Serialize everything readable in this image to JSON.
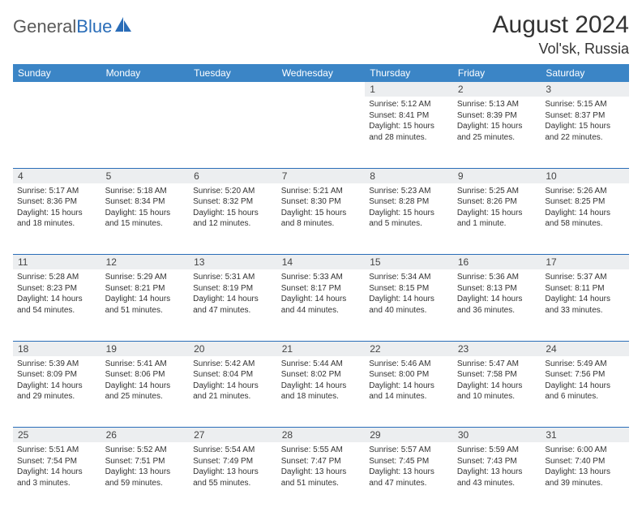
{
  "logo": {
    "text_a": "General",
    "text_b": "Blue"
  },
  "title": "August 2024",
  "location": "Vol'sk, Russia",
  "header_color": "#3b85c6",
  "border_color": "#2a6db8",
  "daynum_bg": "#eceef0",
  "text_color": "#333333",
  "font_family": "Arial",
  "days": [
    "Sunday",
    "Monday",
    "Tuesday",
    "Wednesday",
    "Thursday",
    "Friday",
    "Saturday"
  ],
  "weeks": [
    [
      null,
      null,
      null,
      null,
      {
        "n": "1",
        "sr": "5:12 AM",
        "ss": "8:41 PM",
        "dl": "15 hours and 28 minutes."
      },
      {
        "n": "2",
        "sr": "5:13 AM",
        "ss": "8:39 PM",
        "dl": "15 hours and 25 minutes."
      },
      {
        "n": "3",
        "sr": "5:15 AM",
        "ss": "8:37 PM",
        "dl": "15 hours and 22 minutes."
      }
    ],
    [
      {
        "n": "4",
        "sr": "5:17 AM",
        "ss": "8:36 PM",
        "dl": "15 hours and 18 minutes."
      },
      {
        "n": "5",
        "sr": "5:18 AM",
        "ss": "8:34 PM",
        "dl": "15 hours and 15 minutes."
      },
      {
        "n": "6",
        "sr": "5:20 AM",
        "ss": "8:32 PM",
        "dl": "15 hours and 12 minutes."
      },
      {
        "n": "7",
        "sr": "5:21 AM",
        "ss": "8:30 PM",
        "dl": "15 hours and 8 minutes."
      },
      {
        "n": "8",
        "sr": "5:23 AM",
        "ss": "8:28 PM",
        "dl": "15 hours and 5 minutes."
      },
      {
        "n": "9",
        "sr": "5:25 AM",
        "ss": "8:26 PM",
        "dl": "15 hours and 1 minute."
      },
      {
        "n": "10",
        "sr": "5:26 AM",
        "ss": "8:25 PM",
        "dl": "14 hours and 58 minutes."
      }
    ],
    [
      {
        "n": "11",
        "sr": "5:28 AM",
        "ss": "8:23 PM",
        "dl": "14 hours and 54 minutes."
      },
      {
        "n": "12",
        "sr": "5:29 AM",
        "ss": "8:21 PM",
        "dl": "14 hours and 51 minutes."
      },
      {
        "n": "13",
        "sr": "5:31 AM",
        "ss": "8:19 PM",
        "dl": "14 hours and 47 minutes."
      },
      {
        "n": "14",
        "sr": "5:33 AM",
        "ss": "8:17 PM",
        "dl": "14 hours and 44 minutes."
      },
      {
        "n": "15",
        "sr": "5:34 AM",
        "ss": "8:15 PM",
        "dl": "14 hours and 40 minutes."
      },
      {
        "n": "16",
        "sr": "5:36 AM",
        "ss": "8:13 PM",
        "dl": "14 hours and 36 minutes."
      },
      {
        "n": "17",
        "sr": "5:37 AM",
        "ss": "8:11 PM",
        "dl": "14 hours and 33 minutes."
      }
    ],
    [
      {
        "n": "18",
        "sr": "5:39 AM",
        "ss": "8:09 PM",
        "dl": "14 hours and 29 minutes."
      },
      {
        "n": "19",
        "sr": "5:41 AM",
        "ss": "8:06 PM",
        "dl": "14 hours and 25 minutes."
      },
      {
        "n": "20",
        "sr": "5:42 AM",
        "ss": "8:04 PM",
        "dl": "14 hours and 21 minutes."
      },
      {
        "n": "21",
        "sr": "5:44 AM",
        "ss": "8:02 PM",
        "dl": "14 hours and 18 minutes."
      },
      {
        "n": "22",
        "sr": "5:46 AM",
        "ss": "8:00 PM",
        "dl": "14 hours and 14 minutes."
      },
      {
        "n": "23",
        "sr": "5:47 AM",
        "ss": "7:58 PM",
        "dl": "14 hours and 10 minutes."
      },
      {
        "n": "24",
        "sr": "5:49 AM",
        "ss": "7:56 PM",
        "dl": "14 hours and 6 minutes."
      }
    ],
    [
      {
        "n": "25",
        "sr": "5:51 AM",
        "ss": "7:54 PM",
        "dl": "14 hours and 3 minutes."
      },
      {
        "n": "26",
        "sr": "5:52 AM",
        "ss": "7:51 PM",
        "dl": "13 hours and 59 minutes."
      },
      {
        "n": "27",
        "sr": "5:54 AM",
        "ss": "7:49 PM",
        "dl": "13 hours and 55 minutes."
      },
      {
        "n": "28",
        "sr": "5:55 AM",
        "ss": "7:47 PM",
        "dl": "13 hours and 51 minutes."
      },
      {
        "n": "29",
        "sr": "5:57 AM",
        "ss": "7:45 PM",
        "dl": "13 hours and 47 minutes."
      },
      {
        "n": "30",
        "sr": "5:59 AM",
        "ss": "7:43 PM",
        "dl": "13 hours and 43 minutes."
      },
      {
        "n": "31",
        "sr": "6:00 AM",
        "ss": "7:40 PM",
        "dl": "13 hours and 39 minutes."
      }
    ]
  ],
  "labels": {
    "sunrise": "Sunrise:",
    "sunset": "Sunset:",
    "daylight": "Daylight:"
  }
}
